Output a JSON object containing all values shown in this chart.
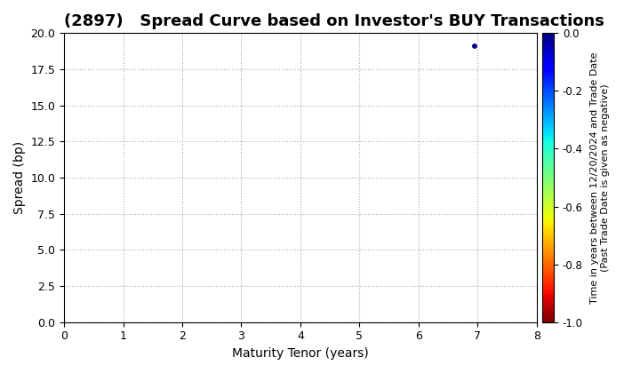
{
  "title": "(2897)   Spread Curve based on Investor's BUY Transactions",
  "xlabel": "Maturity Tenor (years)",
  "ylabel": "Spread (bp)",
  "xlim": [
    0,
    8
  ],
  "ylim": [
    0,
    20
  ],
  "xticks": [
    0,
    1,
    2,
    3,
    4,
    5,
    6,
    7,
    8
  ],
  "yticks": [
    0.0,
    2.5,
    5.0,
    7.5,
    10.0,
    12.5,
    15.0,
    17.5,
    20.0
  ],
  "scatter_x": [
    6.95
  ],
  "scatter_y": [
    19.1
  ],
  "scatter_color": [
    -0.02
  ],
  "cmap": "jet",
  "cbar_ticks": [
    0.0,
    -0.2,
    -0.4,
    -0.6,
    -0.8,
    -1.0
  ],
  "cbar_vmin": -1.0,
  "cbar_vmax": 0.0,
  "background_color": "#ffffff",
  "grid_color": "#aaaaaa",
  "title_fontsize": 13,
  "label_fontsize": 10,
  "tick_fontsize": 9,
  "cbar_label_line1": "Time in years between 12/20/2024 and Trade Date",
  "cbar_label_line2": "(Past Trade Date is given as negative)"
}
